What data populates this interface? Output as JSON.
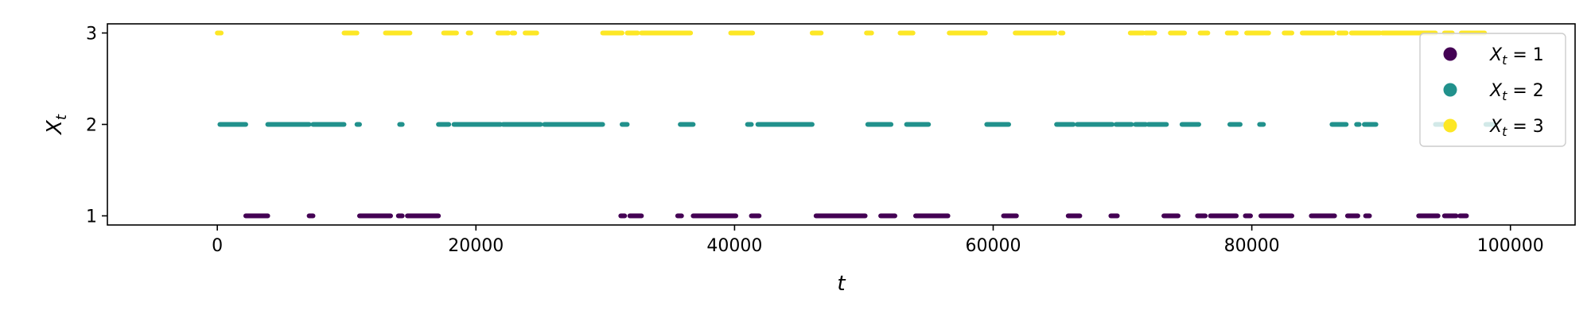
{
  "chart_data": {
    "type": "scatter",
    "xlabel": "t",
    "ylabel": "X_t",
    "xlim": [
      -8500,
      105000
    ],
    "ylim": [
      0.9,
      3.1
    ],
    "xticks": [
      0,
      20000,
      40000,
      60000,
      80000,
      100000
    ],
    "xtick_labels": [
      "0",
      "20000",
      "40000",
      "60000",
      "80000",
      "100000"
    ],
    "yticks": [
      1,
      2,
      3
    ],
    "ytick_labels": [
      "1",
      "2",
      "3"
    ],
    "grid": false,
    "legend_position": "top-right",
    "series": [
      {
        "name": "X_t = 1",
        "legend_main": "X",
        "legend_sub": "t",
        "legend_rest": " = 1",
        "value": 1,
        "color": "#440154",
        "segments": [
          [
            2200,
            3900
          ],
          [
            7100,
            7400
          ],
          [
            11000,
            13400
          ],
          [
            14000,
            14300
          ],
          [
            14700,
            17100
          ],
          [
            31200,
            31500
          ],
          [
            31900,
            32800
          ],
          [
            35600,
            35900
          ],
          [
            36800,
            40100
          ],
          [
            41300,
            41900
          ],
          [
            46300,
            50100
          ],
          [
            51300,
            52400
          ],
          [
            54000,
            56500
          ],
          [
            60800,
            61800
          ],
          [
            65800,
            66700
          ],
          [
            69100,
            69600
          ],
          [
            73200,
            74300
          ],
          [
            75800,
            76400
          ],
          [
            76800,
            78800
          ],
          [
            79500,
            79900
          ],
          [
            80700,
            83100
          ],
          [
            84600,
            86400
          ],
          [
            87400,
            88200
          ],
          [
            88800,
            89100
          ],
          [
            92900,
            94400
          ],
          [
            94900,
            95800
          ],
          [
            96100,
            96600
          ]
        ]
      },
      {
        "name": "X_t = 2",
        "legend_main": "X",
        "legend_sub": "t",
        "legend_rest": " = 2",
        "value": 2,
        "color": "#21918c",
        "segments": [
          [
            200,
            2200
          ],
          [
            3900,
            7100
          ],
          [
            7400,
            9800
          ],
          [
            10800,
            11000
          ],
          [
            14100,
            14300
          ],
          [
            17100,
            17900
          ],
          [
            18300,
            21900
          ],
          [
            22100,
            25000
          ],
          [
            25300,
            29800
          ],
          [
            31300,
            31700
          ],
          [
            35800,
            36800
          ],
          [
            41000,
            41300
          ],
          [
            41800,
            46000
          ],
          [
            50300,
            52100
          ],
          [
            53300,
            55000
          ],
          [
            59500,
            61200
          ],
          [
            64900,
            66200
          ],
          [
            66500,
            69200
          ],
          [
            69500,
            70700
          ],
          [
            71000,
            71800
          ],
          [
            72000,
            73400
          ],
          [
            74600,
            75900
          ],
          [
            78300,
            79100
          ],
          [
            80600,
            80900
          ],
          [
            86200,
            87300
          ],
          [
            88100,
            88300
          ],
          [
            88700,
            89600
          ],
          [
            94200,
            95400
          ],
          [
            98100,
            98800
          ]
        ]
      },
      {
        "name": "X_t = 3",
        "legend_main": "X",
        "legend_sub": "t",
        "legend_rest": " = 3",
        "value": 3,
        "color": "#fde725",
        "segments": [
          [
            0,
            300
          ],
          [
            9800,
            10800
          ],
          [
            13000,
            14900
          ],
          [
            17500,
            18500
          ],
          [
            19400,
            19600
          ],
          [
            21700,
            22500
          ],
          [
            22800,
            23000
          ],
          [
            23800,
            24700
          ],
          [
            29800,
            31300
          ],
          [
            31700,
            32500
          ],
          [
            32800,
            36600
          ],
          [
            39700,
            41400
          ],
          [
            46000,
            46700
          ],
          [
            50200,
            50600
          ],
          [
            52800,
            53800
          ],
          [
            56600,
            59400
          ],
          [
            61700,
            64800
          ],
          [
            65200,
            65400
          ],
          [
            70600,
            71600
          ],
          [
            71800,
            72500
          ],
          [
            73700,
            74800
          ],
          [
            76000,
            76600
          ],
          [
            78100,
            78800
          ],
          [
            79600,
            81300
          ],
          [
            82500,
            83100
          ],
          [
            83900,
            86300
          ],
          [
            86700,
            87300
          ],
          [
            87700,
            89900
          ],
          [
            90100,
            94200
          ],
          [
            94900,
            95500
          ],
          [
            96200,
            98000
          ]
        ]
      }
    ]
  }
}
